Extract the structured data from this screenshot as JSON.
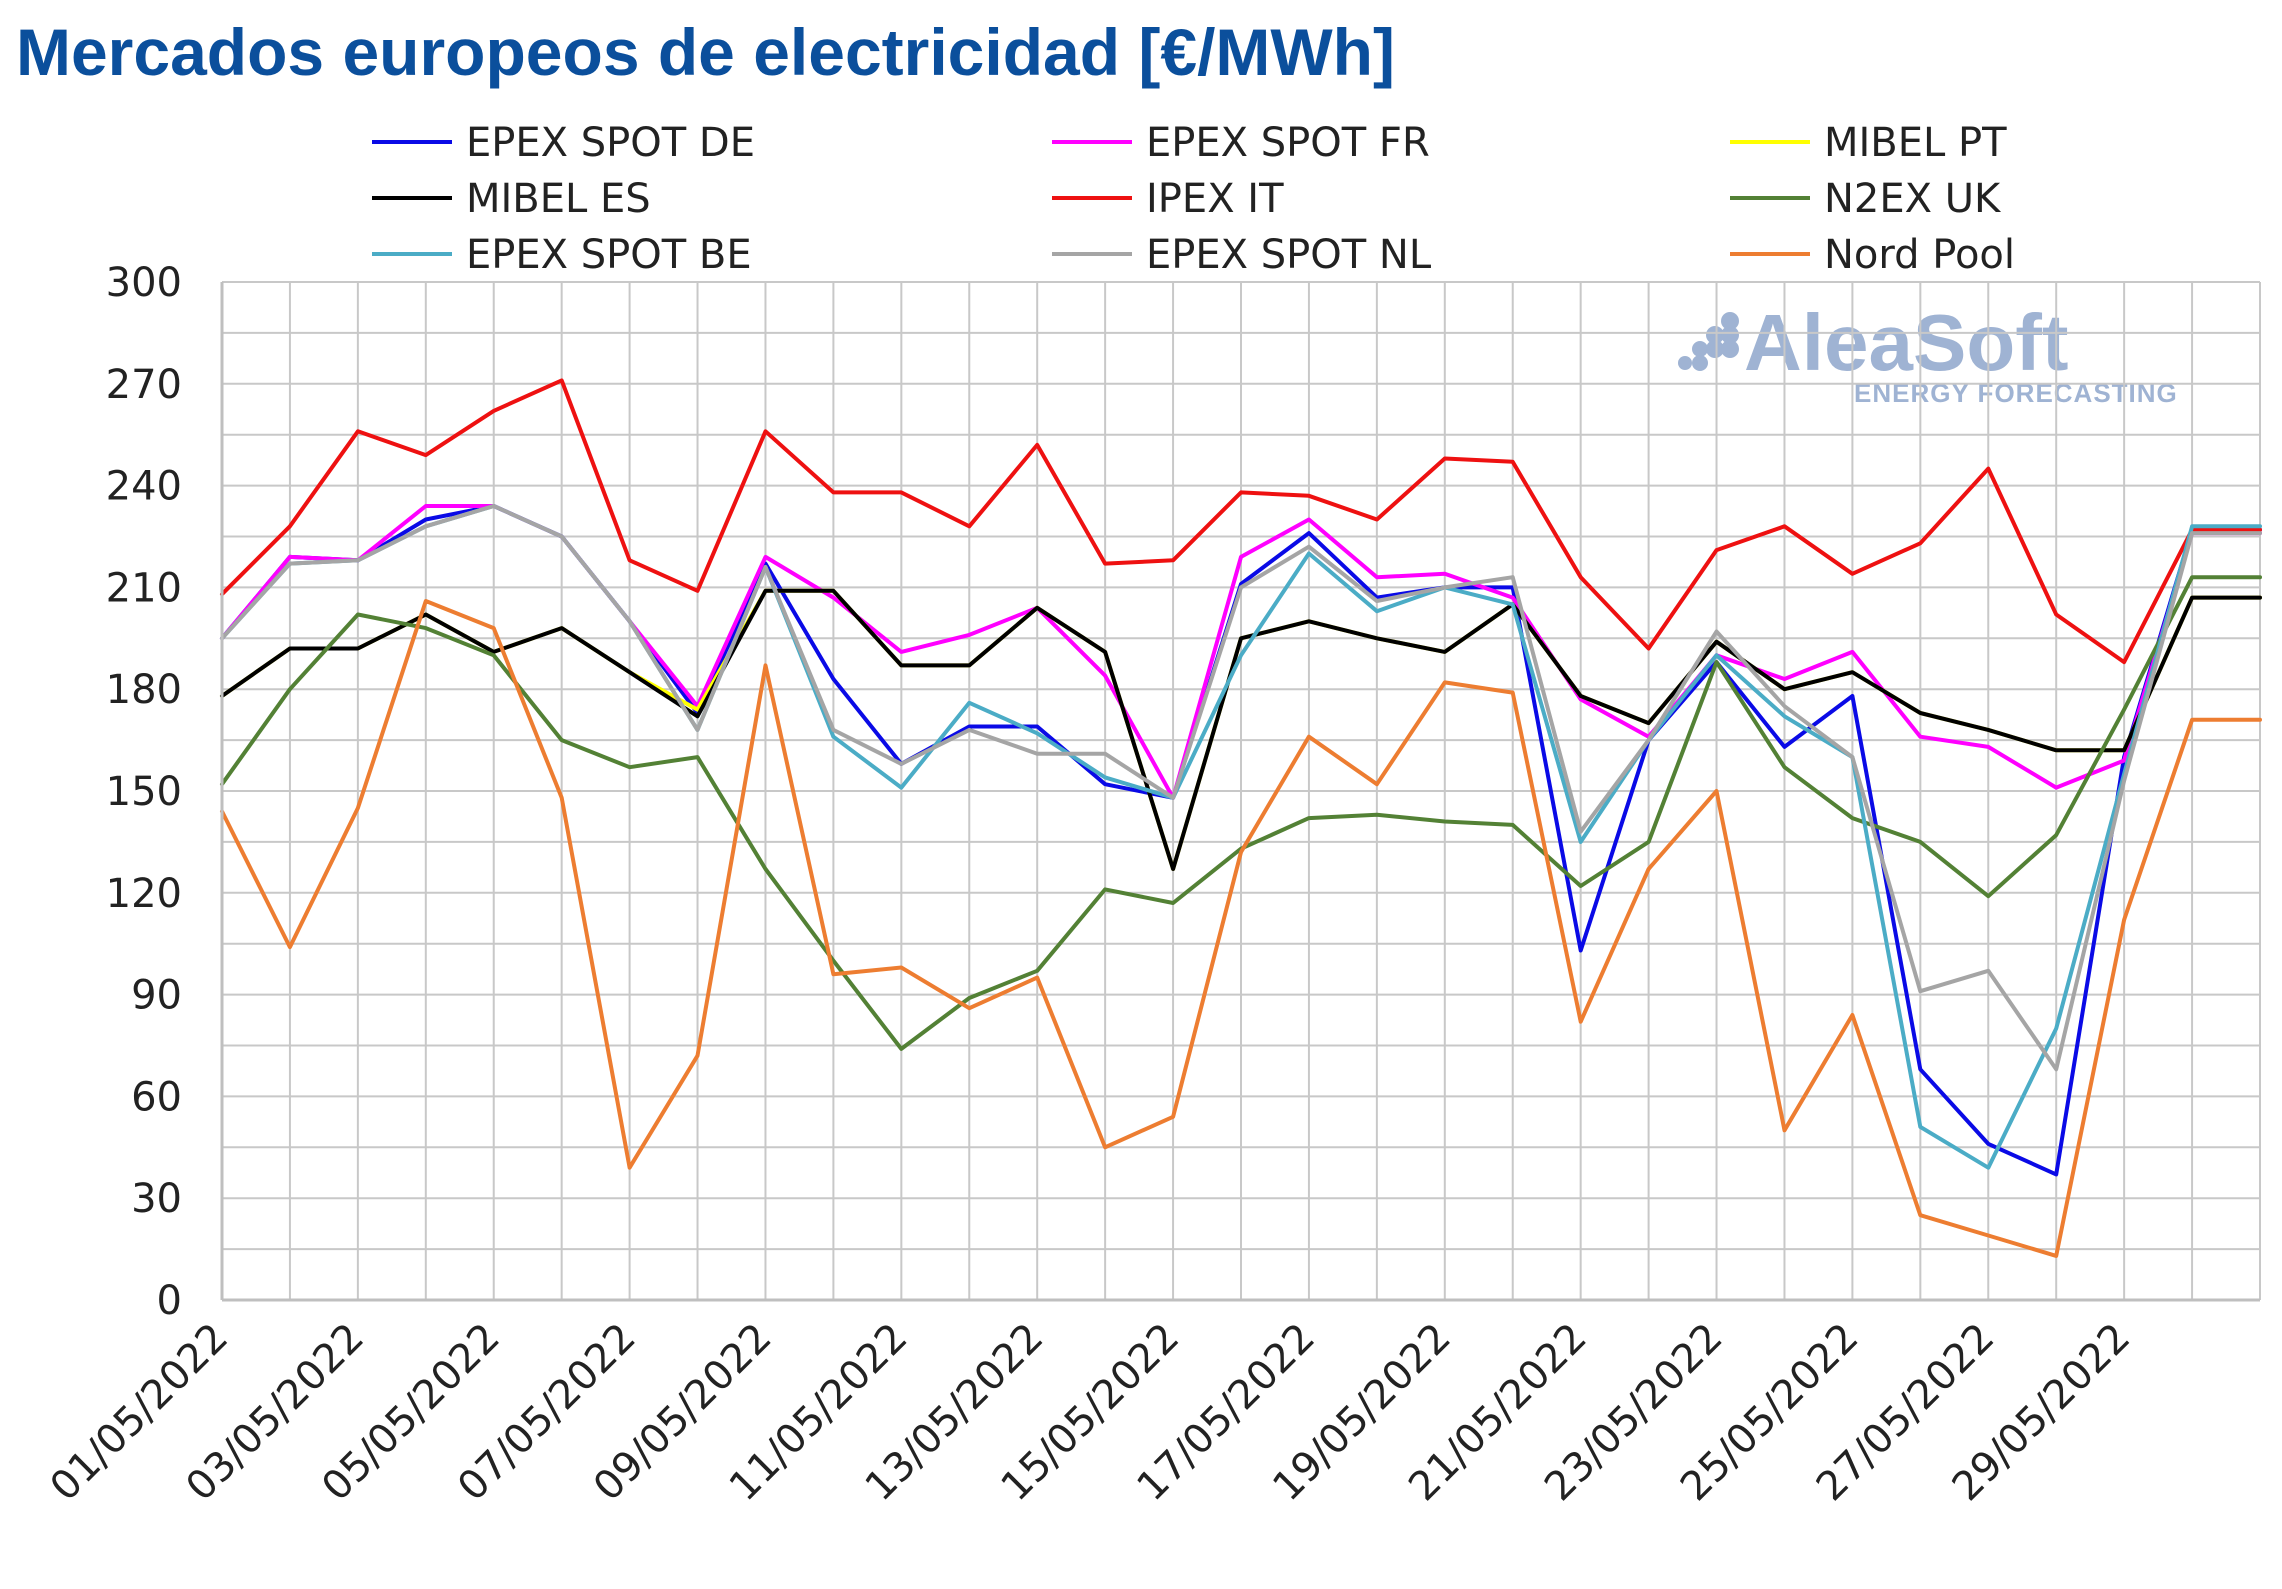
{
  "chart_data": {
    "type": "line",
    "title": "Mercados europeos de electricidad [€/MWh]",
    "xlabel": "",
    "ylabel": "",
    "ylim": [
      0,
      300
    ],
    "yticks": [
      0,
      30,
      60,
      90,
      120,
      150,
      180,
      210,
      240,
      270,
      300
    ],
    "grid": true,
    "legend_placement": "top",
    "watermark": {
      "main": "AleaSoft",
      "sub": "ENERGY FORECASTING"
    },
    "x": [
      "01/05/2022",
      "02/05/2022",
      "03/05/2022",
      "04/05/2022",
      "05/05/2022",
      "06/05/2022",
      "07/05/2022",
      "08/05/2022",
      "09/05/2022",
      "10/05/2022",
      "11/05/2022",
      "12/05/2022",
      "13/05/2022",
      "14/05/2022",
      "15/05/2022",
      "16/05/2022",
      "17/05/2022",
      "18/05/2022",
      "19/05/2022",
      "20/05/2022",
      "21/05/2022",
      "22/05/2022",
      "23/05/2022",
      "24/05/2022",
      "25/05/2022",
      "26/05/2022",
      "27/05/2022",
      "28/05/2022",
      "29/05/2022",
      "30/05/2022",
      "31/05/2022"
    ],
    "xtick_labels": [
      "01/05/2022",
      "03/05/2022",
      "05/05/2022",
      "07/05/2022",
      "09/05/2022",
      "11/05/2022",
      "13/05/2022",
      "15/05/2022",
      "17/05/2022",
      "19/05/2022",
      "21/05/2022",
      "23/05/2022",
      "25/05/2022",
      "27/05/2022",
      "29/05/2022"
    ],
    "series": [
      {
        "name": "EPEX SPOT DE",
        "color": "#0a0ae6",
        "values": [
          195,
          219,
          218,
          230,
          234,
          225,
          200,
          173,
          217,
          183,
          158,
          169,
          169,
          152,
          148,
          211,
          226,
          207,
          210,
          210,
          103,
          165,
          188,
          163,
          178,
          68,
          46,
          37,
          160,
          227,
          227
        ]
      },
      {
        "name": "EPEX SPOT FR",
        "color": "#ff00ff",
        "values": [
          195,
          219,
          218,
          234,
          234,
          225,
          200,
          175,
          219,
          207,
          191,
          196,
          204,
          184,
          148,
          219,
          230,
          213,
          214,
          207,
          177,
          166,
          190,
          183,
          191,
          166,
          163,
          151,
          159,
          226,
          226
        ]
      },
      {
        "name": "MIBEL PT",
        "color": "#ffff00",
        "values": [
          178,
          192,
          192,
          202,
          191,
          198,
          185,
          174,
          209,
          209,
          187,
          187,
          204,
          191,
          127,
          195,
          200,
          195,
          191,
          205,
          178,
          170,
          194,
          180,
          185,
          173,
          168,
          162,
          162,
          207,
          207
        ]
      },
      {
        "name": "MIBEL ES",
        "color": "#000000",
        "values": [
          178,
          192,
          192,
          202,
          191,
          198,
          185,
          172,
          209,
          209,
          187,
          187,
          204,
          191,
          127,
          195,
          200,
          195,
          191,
          205,
          178,
          170,
          194,
          180,
          185,
          173,
          168,
          162,
          162,
          207,
          207
        ]
      },
      {
        "name": "IPEX IT",
        "color": "#ee1111",
        "values": [
          208,
          228,
          256,
          249,
          262,
          271,
          218,
          209,
          256,
          238,
          238,
          228,
          252,
          217,
          218,
          238,
          237,
          230,
          248,
          247,
          213,
          192,
          221,
          228,
          214,
          223,
          245,
          202,
          188,
          227,
          227
        ]
      },
      {
        "name": "N2EX UK",
        "color": "#538135",
        "values": [
          152,
          180,
          202,
          198,
          190,
          165,
          157,
          160,
          127,
          100,
          74,
          89,
          97,
          121,
          117,
          133,
          142,
          143,
          141,
          140,
          122,
          135,
          188,
          157,
          142,
          135,
          119,
          137,
          174,
          213,
          213
        ]
      },
      {
        "name": "EPEX SPOT BE",
        "color": "#4bacc6",
        "values": [
          195,
          217,
          218,
          228,
          234,
          225,
          200,
          168,
          216,
          166,
          151,
          176,
          167,
          154,
          148,
          190,
          220,
          203,
          210,
          205,
          135,
          165,
          190,
          172,
          160,
          51,
          39,
          80,
          155,
          228,
          228
        ]
      },
      {
        "name": "EPEX SPOT NL",
        "color": "#a5a5a5",
        "values": [
          195,
          217,
          218,
          228,
          234,
          225,
          200,
          168,
          216,
          168,
          158,
          168,
          161,
          161,
          148,
          210,
          222,
          206,
          210,
          213,
          138,
          165,
          197,
          175,
          160,
          91,
          97,
          68,
          153,
          226,
          226
        ]
      },
      {
        "name": "Nord Pool",
        "color": "#ed7d31",
        "values": [
          144,
          104,
          145,
          206,
          198,
          148,
          39,
          72,
          187,
          96,
          98,
          86,
          95,
          45,
          54,
          132,
          166,
          152,
          182,
          179,
          82,
          127,
          150,
          50,
          84,
          25,
          19,
          13,
          112,
          171,
          171
        ]
      }
    ]
  }
}
